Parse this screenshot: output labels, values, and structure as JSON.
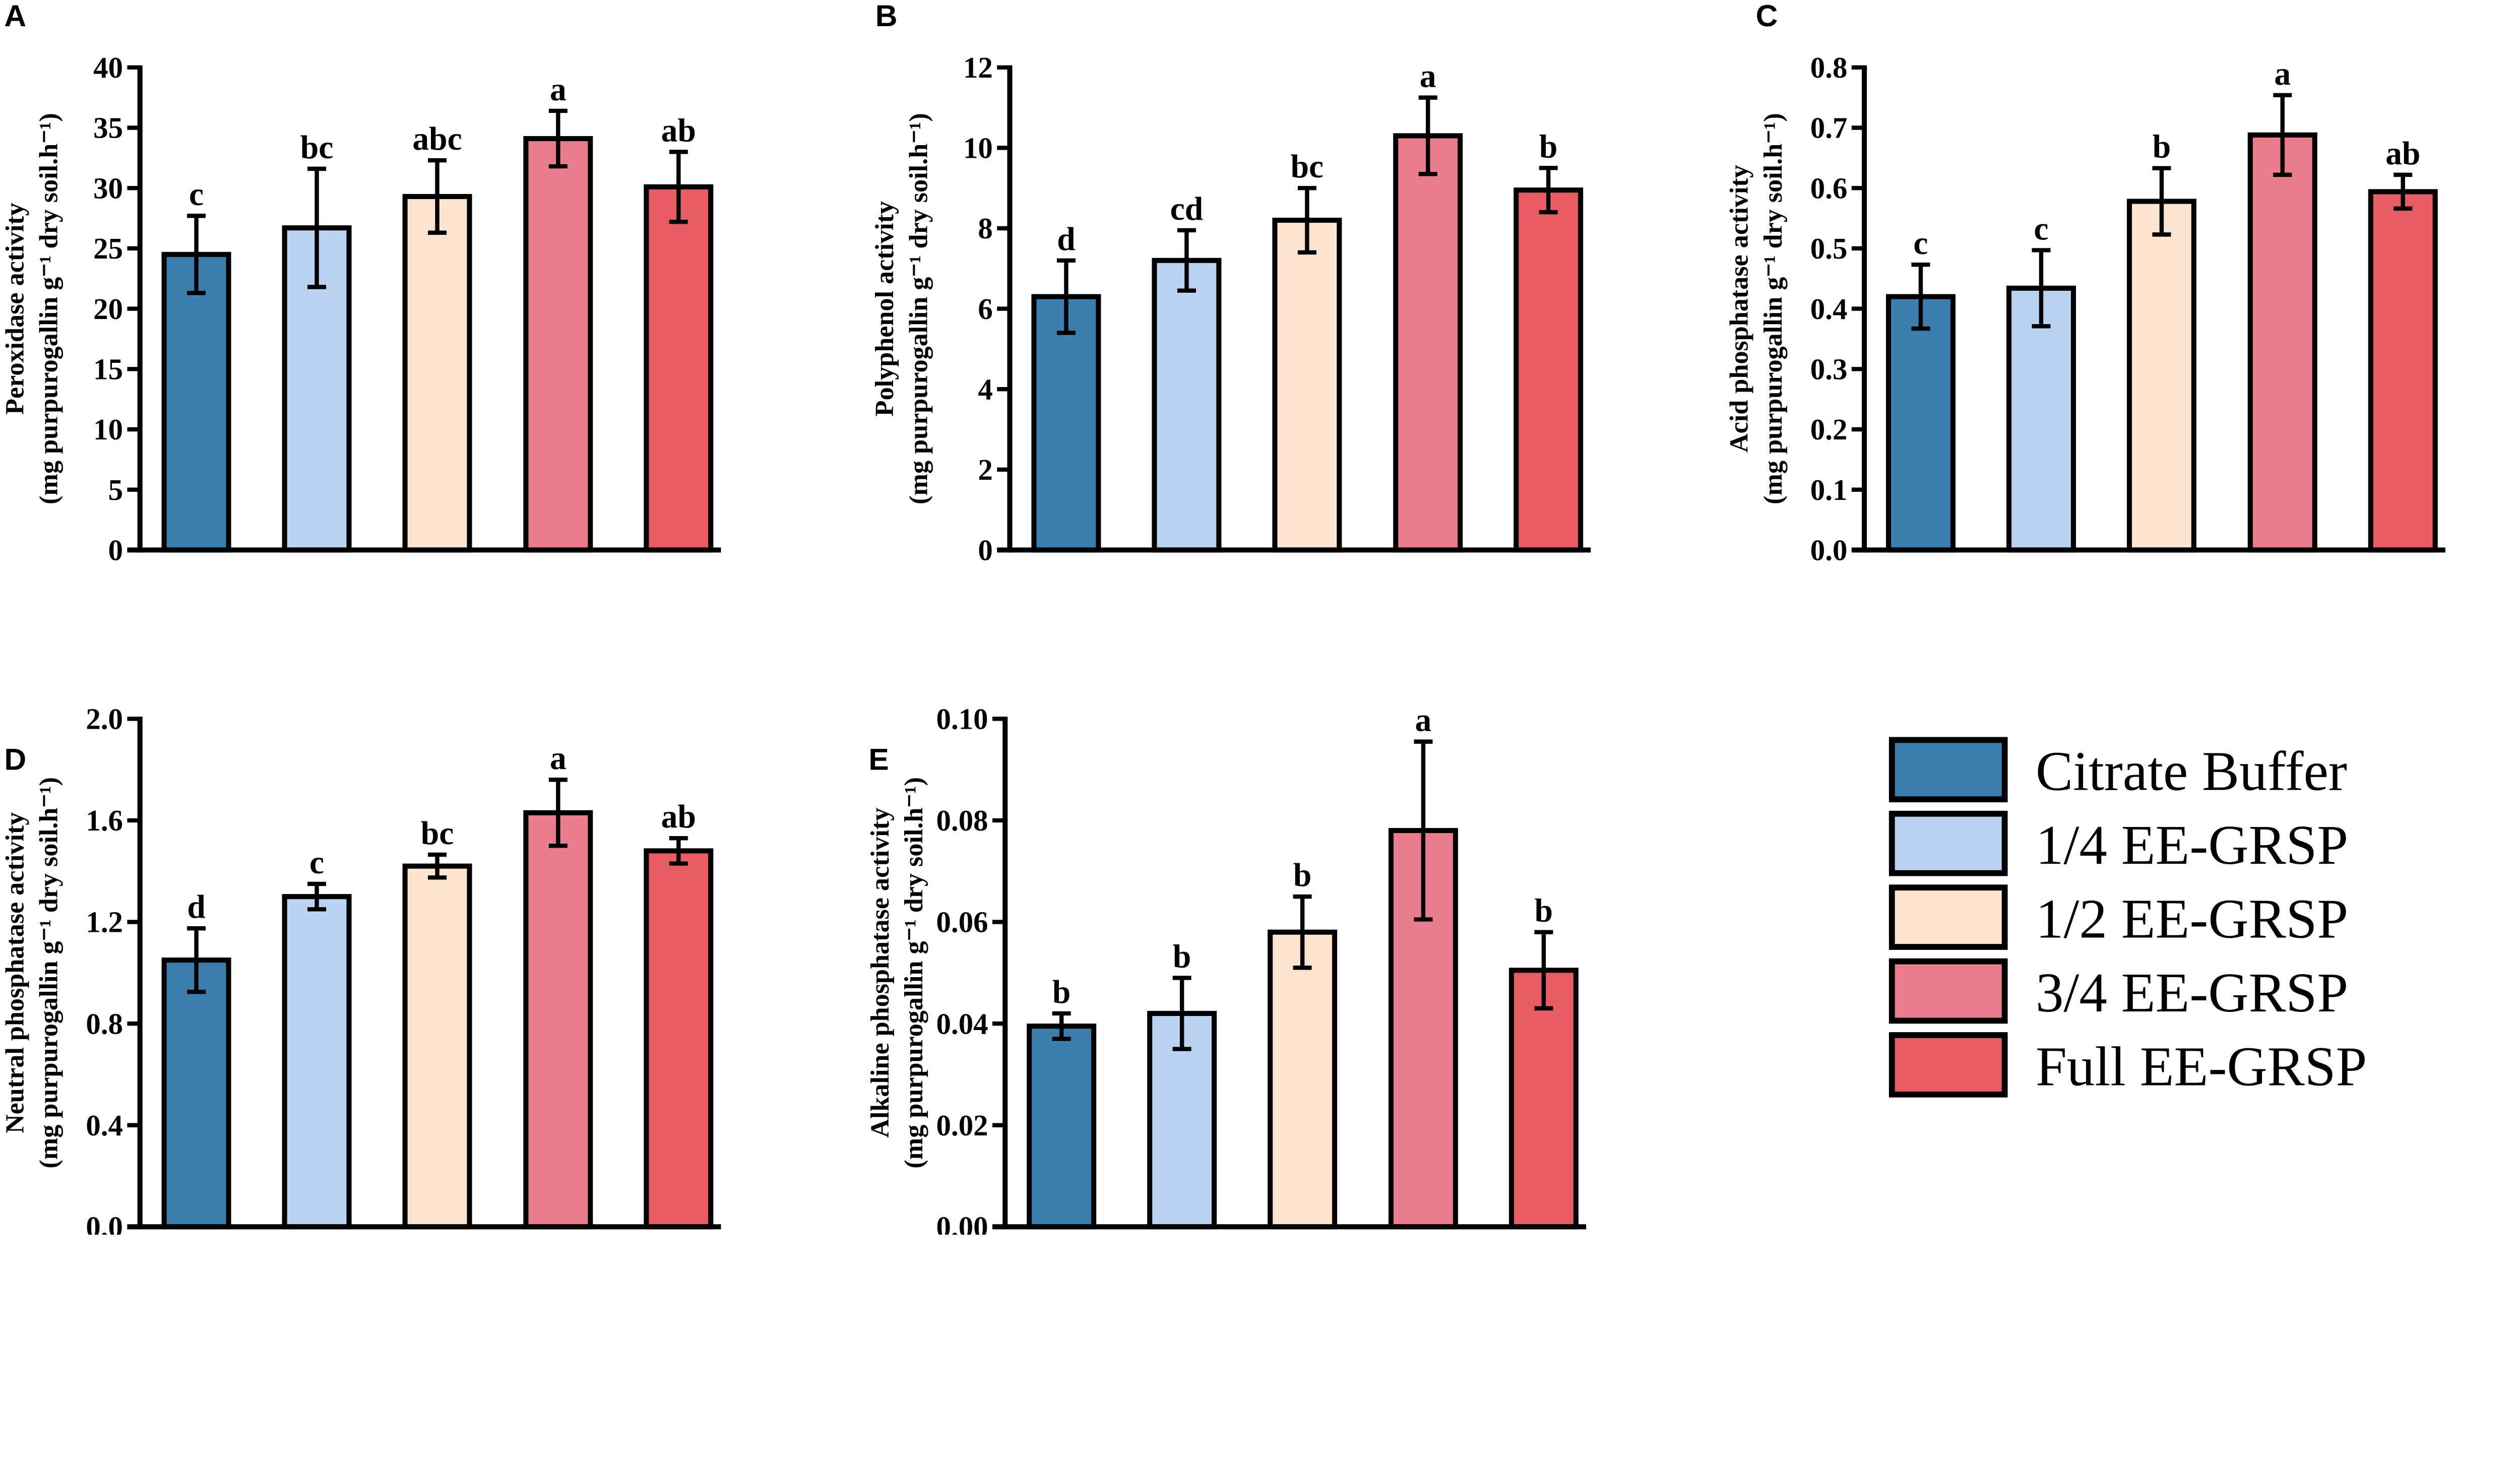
{
  "chart_data": [
    {
      "type": "bar",
      "panel": "A",
      "ylabel": "Peroxidase activity",
      "yunit": "(mg purpurogallin g⁻¹ dry soil.h⁻¹)",
      "ylim": [
        0,
        40
      ],
      "ticks": [
        0,
        5,
        10,
        15,
        20,
        25,
        30,
        35,
        40
      ],
      "tick_labels": [
        "0",
        "5",
        "10",
        "15",
        "20",
        "25",
        "30",
        "35",
        "40"
      ],
      "values": [
        24.5,
        26.7,
        29.3,
        34.1,
        30.1
      ],
      "errors": [
        3.2,
        4.9,
        3.0,
        2.3,
        2.9
      ],
      "letters": [
        "c",
        "bc",
        "abc",
        "a",
        "ab"
      ]
    },
    {
      "type": "bar",
      "panel": "B",
      "ylabel": "Polyphenol activity",
      "yunit": "(mg purpurogallin g⁻¹ dry soil.h⁻¹)",
      "ylim": [
        0,
        12
      ],
      "ticks": [
        0,
        2,
        4,
        6,
        8,
        10,
        12
      ],
      "tick_labels": [
        "0",
        "2",
        "4",
        "6",
        "8",
        "10",
        "12"
      ],
      "values": [
        6.3,
        7.2,
        8.2,
        10.3,
        8.95
      ],
      "errors": [
        0.9,
        0.75,
        0.8,
        0.95,
        0.55
      ],
      "letters": [
        "d",
        "cd",
        "bc",
        "a",
        "b"
      ]
    },
    {
      "type": "bar",
      "panel": "C",
      "ylabel": "Acid phosphatase activity",
      "yunit": "(mg purpurogallin g⁻¹ dry soil.h⁻¹)",
      "ylim": [
        0,
        0.8
      ],
      "ticks": [
        0,
        0.1,
        0.2,
        0.3,
        0.4,
        0.5,
        0.6,
        0.7,
        0.8
      ],
      "tick_labels": [
        "0.0",
        "0.1",
        "0.2",
        "0.3",
        "0.4",
        "0.5",
        "0.6",
        "0.7",
        "0.8"
      ],
      "values": [
        0.42,
        0.434,
        0.578,
        0.688,
        0.594
      ],
      "errors": [
        0.053,
        0.063,
        0.055,
        0.066,
        0.028
      ],
      "letters": [
        "c",
        "c",
        "b",
        "a",
        "ab"
      ]
    },
    {
      "type": "bar",
      "panel": "D",
      "ylabel": "Neutral phosphatase activity",
      "yunit": "(mg purpurogallin g⁻¹ dry soil.h⁻¹)",
      "ylim": [
        0,
        2.0
      ],
      "ticks": [
        0,
        0.4,
        0.8,
        1.2,
        1.6,
        2.0
      ],
      "tick_labels": [
        "0.0",
        "0.4",
        "0.8",
        "1.2",
        "1.6",
        "2.0"
      ],
      "values": [
        1.05,
        1.3,
        1.42,
        1.63,
        1.48
      ],
      "errors": [
        0.125,
        0.05,
        0.045,
        0.13,
        0.05
      ],
      "letters": [
        "d",
        "c",
        "bc",
        "a",
        "ab"
      ]
    },
    {
      "type": "bar",
      "panel": "E",
      "ylabel": "Alkaline phosphatase activity",
      "yunit": "(mg purpurogallin g⁻¹ dry soil.h⁻¹)",
      "ylim": [
        0,
        0.1
      ],
      "ticks": [
        0,
        0.02,
        0.04,
        0.06,
        0.08,
        0.1
      ],
      "tick_labels": [
        "0.00",
        "0.02",
        "0.04",
        "0.06",
        "0.08",
        "0.10"
      ],
      "values": [
        0.0395,
        0.042,
        0.058,
        0.078,
        0.0505
      ],
      "errors": [
        0.0025,
        0.007,
        0.007,
        0.0175,
        0.0075
      ],
      "letters": [
        "b",
        "b",
        "b",
        "a",
        "b"
      ]
    }
  ],
  "categories": [
    "Citrate Buffer",
    "1/4 EE-GRSP",
    "1/2 EE-GRSP",
    "3/4 EE-GRSP",
    "Full EE-GRSP"
  ],
  "colors": [
    "#3b7eb0",
    "#bad3f2",
    "#fde4d0",
    "#ea7d8c",
    "#e85c63"
  ],
  "legend": {
    "placement": "bottom-right",
    "items": [
      "Citrate Buffer",
      "1/4 EE-GRSP",
      "1/2 EE-GRSP",
      "3/4 EE-GRSP",
      "Full EE-GRSP"
    ]
  }
}
